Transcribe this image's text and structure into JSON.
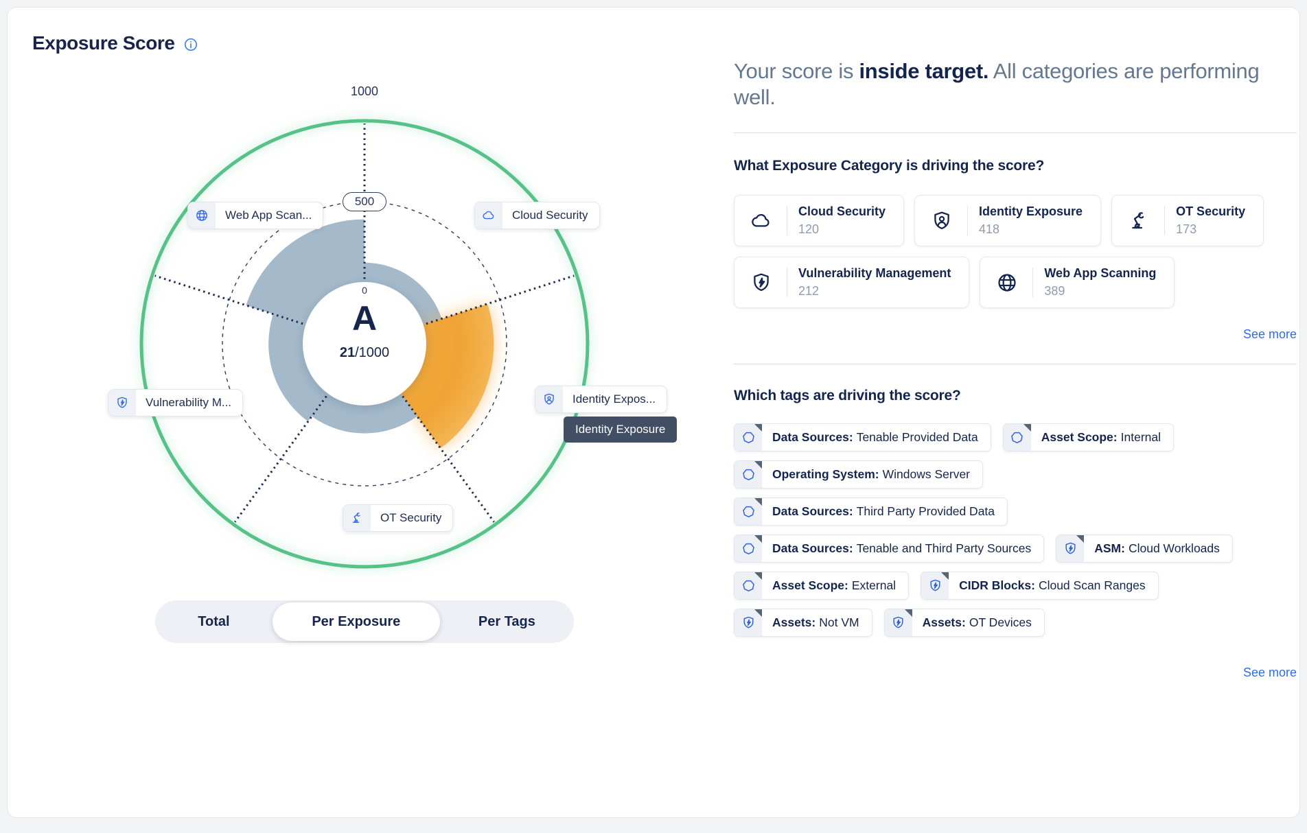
{
  "header": {
    "title": "Exposure Score",
    "info_icon": "info-icon"
  },
  "chart": {
    "grade": "A",
    "score": "21",
    "score_denominator": "/1000",
    "ticks": {
      "outer": "1000",
      "middle": "500",
      "inner": "0"
    },
    "colors": {
      "ring_green": "#57c287",
      "wedge_gray": "#a4b9c9",
      "wedge_highlight": "#f1a63a",
      "spoke_navy": "#1e2e52",
      "icon_blue": "#3b6ce4",
      "tooltip_bg": "#414e63",
      "link_blue": "#2e6ce8"
    },
    "categories": [
      {
        "name": "web-app-scanning",
        "chip_label": "Web App Scan...",
        "icon": "globe-icon",
        "icon_ref": "#i-globe",
        "value": 389,
        "sector": 4,
        "highlight": false
      },
      {
        "name": "cloud-security",
        "chip_label": "Cloud Security",
        "icon": "cloud-icon",
        "icon_ref": "#i-cloud",
        "value": 120,
        "sector": 0,
        "highlight": false
      },
      {
        "name": "identity-exposure",
        "chip_label": "Identity Expos...",
        "icon": "identity-badge-icon",
        "icon_ref": "#i-identity",
        "value": 418,
        "sector": 1,
        "highlight": true
      },
      {
        "name": "ot-security",
        "chip_label": "OT Security",
        "icon": "robot-arm-icon",
        "icon_ref": "#i-ot",
        "value": 173,
        "sector": 2,
        "highlight": false
      },
      {
        "name": "vulnerability-management",
        "chip_label": "Vulnerability M...",
        "icon": "shield-lightning-icon",
        "icon_ref": "#i-vm",
        "value": 212,
        "sector": 3,
        "highlight": false
      }
    ],
    "tooltip": "Identity Exposure",
    "max_value": 1000,
    "tabs": [
      {
        "label": "Total",
        "active": false
      },
      {
        "label": "Per Exposure",
        "active": true
      },
      {
        "label": "Per Tags",
        "active": false
      }
    ]
  },
  "summary": {
    "prefix": "Your score is ",
    "highlight": "inside target.",
    "suffix": " All categories are performing well."
  },
  "category_section": {
    "heading": "What Exposure Category is driving the score?",
    "cards": [
      {
        "icon": "cloud-icon",
        "icon_ref": "#i-cloud",
        "title": "Cloud Security",
        "value": "120"
      },
      {
        "icon": "identity-badge-icon",
        "icon_ref": "#i-identity",
        "title": "Identity Exposure",
        "value": "418"
      },
      {
        "icon": "robot-arm-icon",
        "icon_ref": "#i-ot",
        "title": "OT Security",
        "value": "173"
      },
      {
        "icon": "shield-lightning-icon",
        "icon_ref": "#i-vm",
        "title": "Vulnerability Management",
        "value": "212"
      },
      {
        "icon": "globe-icon",
        "icon_ref": "#i-globe",
        "title": "Web App Scanning",
        "value": "389"
      }
    ],
    "see_more": "See more"
  },
  "tags_section": {
    "heading": "Which tags are driving the score?",
    "tags": [
      {
        "icon": "heptagon-tag-icon",
        "icon_ref": "#i-tag",
        "label": "Data Sources:",
        "value": "Tenable Provided Data",
        "row": 1
      },
      {
        "icon": "heptagon-tag-icon",
        "icon_ref": "#i-tag",
        "label": "Asset Scope:",
        "value": "Internal",
        "row": 1
      },
      {
        "icon": "heptagon-tag-icon",
        "icon_ref": "#i-tag",
        "label": "Operating System:",
        "value": "Windows Server",
        "row": 2
      },
      {
        "icon": "heptagon-tag-icon",
        "icon_ref": "#i-tag",
        "label": "Data Sources:",
        "value": "Third Party Provided Data",
        "row": 3
      },
      {
        "icon": "heptagon-tag-icon",
        "icon_ref": "#i-tag",
        "label": "Data Sources:",
        "value": "Tenable and Third Party Sources",
        "row": 4
      },
      {
        "icon": "shield-lightning-icon",
        "icon_ref": "#i-shield",
        "label": "ASM:",
        "value": "Cloud Workloads",
        "row": 4
      },
      {
        "icon": "heptagon-tag-icon",
        "icon_ref": "#i-tag",
        "label": "Asset Scope:",
        "value": "External",
        "row": 5
      },
      {
        "icon": "shield-lightning-icon",
        "icon_ref": "#i-shield",
        "label": "CIDR Blocks:",
        "value": "Cloud Scan Ranges",
        "row": 5
      },
      {
        "icon": "shield-lightning-icon",
        "icon_ref": "#i-shield",
        "label": "Assets:",
        "value": "Not VM",
        "row": 6
      },
      {
        "icon": "shield-lightning-icon",
        "icon_ref": "#i-shield",
        "label": "Assets:",
        "value": "OT Devices",
        "row": 6
      }
    ],
    "see_more": "See more"
  }
}
